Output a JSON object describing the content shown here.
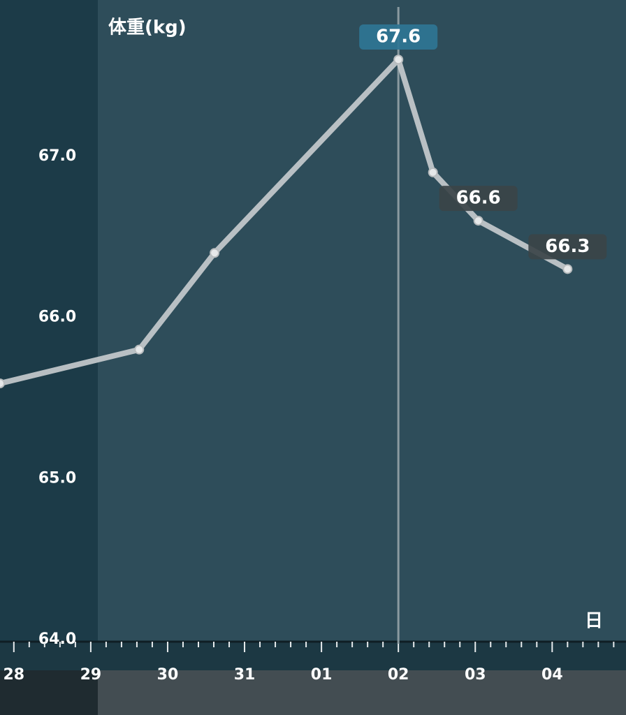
{
  "chart_data": {
    "type": "line",
    "title": "体重(kg)",
    "x_label": "日",
    "x": [
      -0.18,
      1.63,
      2.61,
      5.0,
      5.45,
      6.04,
      7.2
    ],
    "series": [
      {
        "color": "#c9cdcf",
        "values": [
          65.59,
          65.8,
          66.4,
          67.6,
          66.9,
          66.6,
          66.3
        ],
        "value_labels": [
          null,
          null,
          null,
          "67.6",
          null,
          "66.6",
          "66.3"
        ]
      }
    ],
    "selected_point": 3,
    "xlim": [
      -0.18,
      7.96
    ],
    "xticks": [
      {
        "value": 0,
        "label": "28"
      },
      {
        "value": 1,
        "label": "29"
      },
      {
        "value": 2,
        "label": "30"
      },
      {
        "value": 3,
        "label": "31"
      },
      {
        "value": 4,
        "label": "01"
      },
      {
        "value": 5,
        "label": "02"
      },
      {
        "value": 6,
        "label": "03"
      },
      {
        "value": 7,
        "label": "04"
      }
    ],
    "ylim": [
      64,
      67.97
    ],
    "yticks": [
      {
        "value": 64,
        "label": "64.0"
      },
      {
        "value": 65,
        "label": "65.0"
      },
      {
        "value": 66,
        "label": "66.0"
      },
      {
        "value": 67,
        "label": "67.0"
      }
    ]
  }
}
